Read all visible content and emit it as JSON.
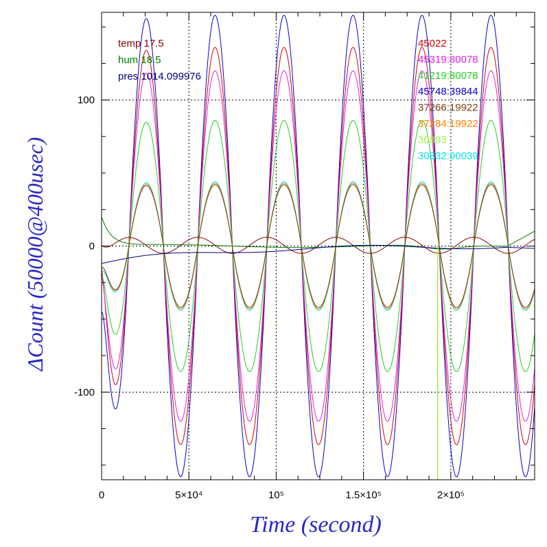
{
  "chart_data": {
    "type": "line",
    "xlabel": "Time (second)",
    "ylabel": "ΔCount (50000@400usec)",
    "xlim": [
      0,
      248000
    ],
    "ylim": [
      -160,
      160
    ],
    "grid": true,
    "x_ticks": [
      {
        "value": 0,
        "label": "0"
      },
      {
        "value": 50000,
        "label": "5×10⁴"
      },
      {
        "value": 100000,
        "label": "10⁵"
      },
      {
        "value": 150000,
        "label": "1.5×10⁵"
      },
      {
        "value": 200000,
        "label": "2×10⁵"
      }
    ],
    "y_ticks": [
      {
        "value": -100,
        "label": "-100"
      },
      {
        "value": 0,
        "label": "0"
      },
      {
        "value": 100,
        "label": "100"
      }
    ],
    "legend_left": [
      {
        "label": "temp 17.5",
        "color": "#8b0000"
      },
      {
        "label": "hum 18.5",
        "color": "#008000"
      },
      {
        "label": "pres 1014.099976",
        "color": "#000080"
      }
    ],
    "legend_right": [
      {
        "label": "45022",
        "color": "#d00000"
      },
      {
        "label": "45319:80078",
        "color": "#e020e0"
      },
      {
        "label": "41219:80078",
        "color": "#20d020"
      },
      {
        "label": "45748:39844",
        "color": "#0000d0"
      },
      {
        "label": "37266:19922",
        "color": "#7a3a10"
      },
      {
        "label": "37284:19922",
        "color": "#ff8000"
      },
      {
        "label": "30893",
        "color": "#a0f040"
      },
      {
        "label": "30832:90039",
        "color": "#00e0f0"
      }
    ],
    "period": 39500,
    "phase_x": 25500,
    "marker_x": 192500,
    "marker_color": "#a0f040",
    "series": [
      {
        "label": "45022",
        "color": "#d00000",
        "amp": 136,
        "start": -15,
        "offset": 0
      },
      {
        "label": "45319:80078",
        "color": "#e020e0",
        "amp": 120,
        "start": -20,
        "offset": 0
      },
      {
        "label": "41219:80078",
        "color": "#20d020",
        "amp": 86,
        "start": -20,
        "offset": 0
      },
      {
        "label": "45748:39844",
        "color": "#0000d0",
        "amp": 158,
        "start": -45,
        "offset": 0
      },
      {
        "label": "37266:19922",
        "color": "#7a3a10",
        "amp": 42,
        "start": -15,
        "offset": 0
      },
      {
        "label": "37284:19922",
        "color": "#ff8000",
        "amp": 43,
        "start": -15,
        "offset": 0
      },
      {
        "label": "30893",
        "color": "#a0f040",
        "amp": 44,
        "start": -18,
        "offset": 0
      },
      {
        "label": "30832:90039",
        "color": "#00e0f0",
        "amp": 44,
        "start": -18,
        "offset": 0
      }
    ],
    "env_series": [
      {
        "label": "temp 17.5",
        "color": "#8b0000",
        "kind": "temp"
      },
      {
        "label": "hum 18.5",
        "color": "#008000",
        "kind": "hum"
      },
      {
        "label": "pres 1014.099976",
        "color": "#000080",
        "kind": "pres"
      }
    ]
  }
}
